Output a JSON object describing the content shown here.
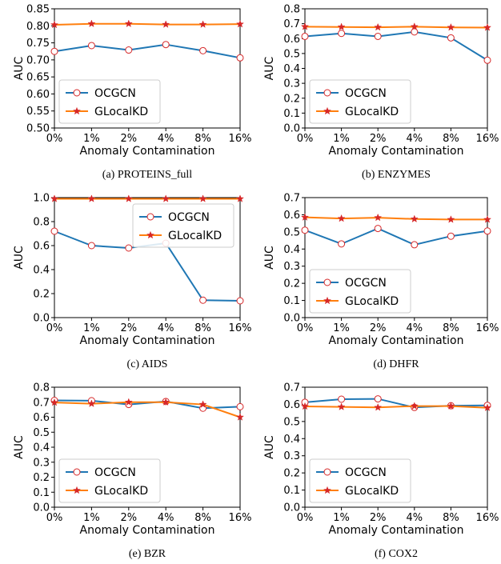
{
  "colors": {
    "ocgcn_line": "#1f77b4",
    "ocgcn_marker_edge": "#d62728",
    "ocgcn_marker_fill": "#ffffff",
    "glocalkd_line": "#ff7f0e",
    "glocalkd_marker": "#d62728"
  },
  "chart_data": [
    {
      "type": "line",
      "caption": "(a)  PROTEINS_full",
      "xlabel": "Anomaly Contamination",
      "ylabel": "AUC",
      "categories": [
        "0%",
        "1%",
        "2%",
        "4%",
        "8%",
        "16%"
      ],
      "ylim": [
        0.5,
        0.85
      ],
      "yticks": [
        "0.50",
        "0.55",
        "0.60",
        "0.65",
        "0.70",
        "0.75",
        "0.80",
        "0.85"
      ],
      "legend": "lower-left",
      "series": [
        {
          "name": "OCGCN",
          "values": [
            0.725,
            0.742,
            0.729,
            0.745,
            0.727,
            0.706
          ]
        },
        {
          "name": "GLocalKD",
          "values": [
            0.803,
            0.806,
            0.806,
            0.804,
            0.804,
            0.805
          ]
        }
      ]
    },
    {
      "type": "line",
      "caption": "(b)  ENZYMES",
      "xlabel": "Anomaly Contamination",
      "ylabel": "AUC",
      "categories": [
        "0%",
        "1%",
        "2%",
        "4%",
        "8%",
        "16%"
      ],
      "ylim": [
        0.0,
        0.8
      ],
      "yticks": [
        "0.0",
        "0.1",
        "0.2",
        "0.3",
        "0.4",
        "0.5",
        "0.6",
        "0.7",
        "0.8"
      ],
      "legend": "lower-left",
      "series": [
        {
          "name": "OCGCN",
          "values": [
            0.615,
            0.635,
            0.615,
            0.645,
            0.605,
            0.455
          ]
        },
        {
          "name": "GLocalKD",
          "values": [
            0.68,
            0.678,
            0.676,
            0.68,
            0.675,
            0.674
          ]
        }
      ]
    },
    {
      "type": "line",
      "caption": "(c)  AIDS",
      "xlabel": "Anomaly Contamination",
      "ylabel": "AUC",
      "categories": [
        "0%",
        "1%",
        "2%",
        "4%",
        "8%",
        "16%"
      ],
      "ylim": [
        0.0,
        1.0
      ],
      "yticks": [
        "0.0",
        "0.2",
        "0.4",
        "0.6",
        "0.8",
        "1.0"
      ],
      "legend": "upper-right",
      "series": [
        {
          "name": "OCGCN",
          "values": [
            0.72,
            0.6,
            0.58,
            0.62,
            0.145,
            0.14
          ]
        },
        {
          "name": "GLocalKD",
          "values": [
            0.99,
            0.99,
            0.99,
            0.99,
            0.99,
            0.99
          ]
        }
      ]
    },
    {
      "type": "line",
      "caption": "(d)  DHFR",
      "xlabel": "Anomaly Contamination",
      "ylabel": "AUC",
      "categories": [
        "0%",
        "1%",
        "2%",
        "4%",
        "8%",
        "16%"
      ],
      "ylim": [
        0.0,
        0.7
      ],
      "yticks": [
        "0.0",
        "0.1",
        "0.2",
        "0.3",
        "0.4",
        "0.5",
        "0.6",
        "0.7"
      ],
      "legend": "lower-left",
      "series": [
        {
          "name": "OCGCN",
          "values": [
            0.51,
            0.43,
            0.52,
            0.425,
            0.475,
            0.505
          ]
        },
        {
          "name": "GLocalKD",
          "values": [
            0.585,
            0.578,
            0.583,
            0.575,
            0.572,
            0.572
          ]
        }
      ]
    },
    {
      "type": "line",
      "caption": "(e)  BZR",
      "xlabel": "Anomaly Contamination",
      "ylabel": "AUC",
      "categories": [
        "0%",
        "1%",
        "2%",
        "4%",
        "8%",
        "16%"
      ],
      "ylim": [
        0.0,
        0.8
      ],
      "yticks": [
        "0.0",
        "0.1",
        "0.2",
        "0.3",
        "0.4",
        "0.5",
        "0.6",
        "0.7",
        "0.8"
      ],
      "legend": "lower-left",
      "series": [
        {
          "name": "OCGCN",
          "values": [
            0.712,
            0.71,
            0.685,
            0.705,
            0.66,
            0.67
          ]
        },
        {
          "name": "GLocalKD",
          "values": [
            0.698,
            0.69,
            0.7,
            0.7,
            0.685,
            0.6
          ]
        }
      ]
    },
    {
      "type": "line",
      "caption": "(f)  COX2",
      "xlabel": "Anomaly Contamination",
      "ylabel": "AUC",
      "categories": [
        "0%",
        "1%",
        "2%",
        "4%",
        "8%",
        "16%"
      ],
      "ylim": [
        0.0,
        0.7
      ],
      "yticks": [
        "0.0",
        "0.1",
        "0.2",
        "0.3",
        "0.4",
        "0.5",
        "0.6",
        "0.7"
      ],
      "legend": "lower-left",
      "series": [
        {
          "name": "OCGCN",
          "values": [
            0.612,
            0.63,
            0.632,
            0.582,
            0.592,
            0.594
          ]
        },
        {
          "name": "GLocalKD",
          "values": [
            0.588,
            0.585,
            0.582,
            0.59,
            0.59,
            0.58
          ]
        }
      ]
    }
  ]
}
